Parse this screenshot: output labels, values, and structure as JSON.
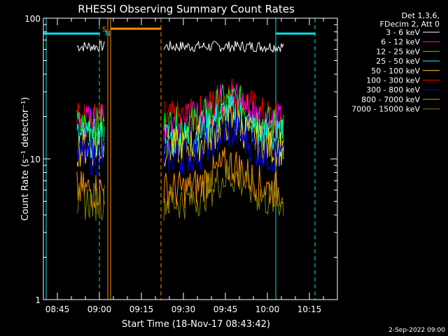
{
  "chart_data": {
    "type": "line",
    "title": "RHESSI Observing Summary Count Rates",
    "xlabel": "Start Time (18-Nov-17 08:43:42)",
    "ylabel": "Count Rate (s⁻¹ detector⁻¹)",
    "yscale": "log",
    "ylim": [
      1,
      100
    ],
    "xlim": [
      "08:40",
      "10:25"
    ],
    "x_ticks": [
      "08:45",
      "09:00",
      "09:15",
      "09:30",
      "09:45",
      "10:00",
      "10:15"
    ],
    "y_ticks": [
      "1",
      "10",
      "100"
    ],
    "legend_header": [
      "Det 1,3,6,",
      "FDecim 2, Att 0"
    ],
    "legend_position": "top-right outside",
    "footer_date": "2-Sep-2022 09:00",
    "flag_letters": [
      {
        "letter": "S",
        "color": "#ff8c00"
      },
      {
        "letter": "N",
        "color": "#00e5ee"
      }
    ],
    "segments": [
      {
        "start": "08:52",
        "end": "09:02"
      },
      {
        "start": "09:23",
        "end": "10:06"
      }
    ],
    "series": [
      {
        "name": "3 - 6 keV",
        "color": "#ffffff",
        "level": 63
      },
      {
        "name": "6 - 12 keV",
        "color": "#ff00ff",
        "level": 18
      },
      {
        "name": "12 - 25 keV",
        "color": "#00ff00",
        "level": 17
      },
      {
        "name": "25 - 50 keV",
        "color": "#00ffff",
        "level": 14
      },
      {
        "name": "50 - 100 keV",
        "color": "#ffd700",
        "level": 12
      },
      {
        "name": "100 - 300 keV",
        "color": "#ff0000",
        "level": 19
      },
      {
        "name": "300 - 800 keV",
        "color": "#0000ff",
        "level": 10.5
      },
      {
        "name": "800 - 7000 keV",
        "color": "#ff8c00",
        "level": 6
      },
      {
        "name": "7000 - 15000 keV",
        "color": "#808000",
        "level": 5
      }
    ],
    "markers": {
      "night_solid": [
        "08:41",
        "10:03"
      ],
      "night_dashed": [
        "09:00",
        "10:17"
      ],
      "saa_solid": [
        "09:03",
        "09:04"
      ],
      "saa_dashed": [
        "09:22"
      ],
      "night_bars": [
        [
          "08:40",
          "09:00"
        ],
        [
          "10:03",
          "10:17"
        ]
      ],
      "saa_bars": [
        [
          "09:04",
          "09:22"
        ]
      ]
    }
  }
}
